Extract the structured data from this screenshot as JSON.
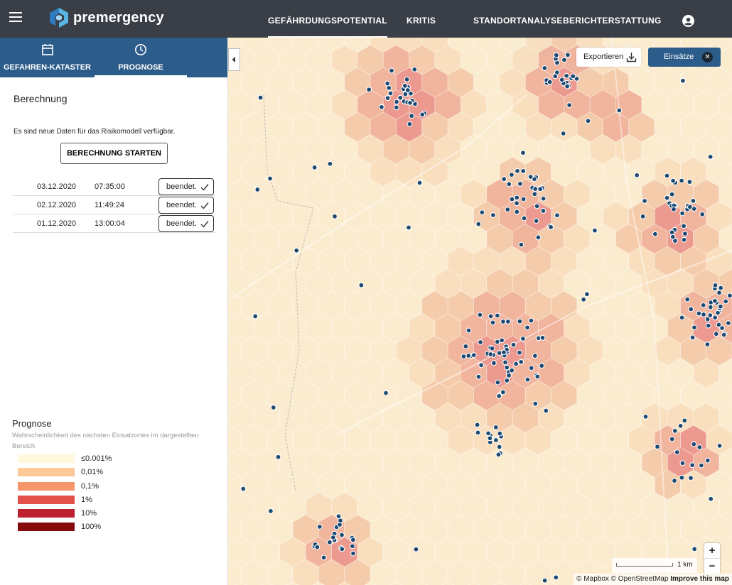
{
  "brand": {
    "name": "premergency"
  },
  "nav": {
    "items": [
      {
        "label": "GEFÄHRDUNGSPOTENTIAL",
        "active": true
      },
      {
        "label": "KRITIS"
      },
      {
        "label": "STANDORTANALYSE"
      },
      {
        "label": "BERICHTERSTATTUNG"
      }
    ]
  },
  "sidebar": {
    "tabs": [
      {
        "label": "GEFAHREN-KATASTER",
        "icon": "calendar-icon"
      },
      {
        "label": "PROGNOSE",
        "icon": "clock-icon",
        "active": true
      }
    ],
    "section_title": "Berechnung",
    "info": "Es sind neue Daten für das Risikomodell verfügbar.",
    "start_button": "BERECHNUNG STARTEN",
    "runs": [
      {
        "date": "03.12.2020",
        "time": "07:35:00",
        "status": "beendet."
      },
      {
        "date": "02.12.2020",
        "time": "11:49:24",
        "status": "beendet."
      },
      {
        "date": "01.12.2020",
        "time": "13:00:04",
        "status": "beendet."
      }
    ],
    "legend": {
      "title": "Prognose",
      "subtitle": "Wahrscheinlichkeit des nächsten Einsatzortes im dargestellten Bereich",
      "items": [
        {
          "label": "≤0.001%",
          "color": "#fff8dd"
        },
        {
          "label": "0,01%",
          "color": "#fdc796"
        },
        {
          "label": "0,1%",
          "color": "#f4956c"
        },
        {
          "label": "1%",
          "color": "#e4514c"
        },
        {
          "label": "10%",
          "color": "#bc1f2e"
        },
        {
          "label": "100%",
          "color": "#830b0b"
        }
      ]
    }
  },
  "map": {
    "export_label": "Exportieren",
    "incidents_label": "Einsätze",
    "scale_label": "1 km",
    "attribution": "© Mapbox © OpenStreetMap",
    "improve": "Improve this map",
    "zoom_in": "+",
    "zoom_out": "−",
    "colors": {
      "base": "#fbeccd",
      "light": "#f9ddb8",
      "mid": "#f5c7a2",
      "warm": "#f0aa90",
      "hot": "#ea8c83",
      "marker": "#1e4a72"
    }
  }
}
